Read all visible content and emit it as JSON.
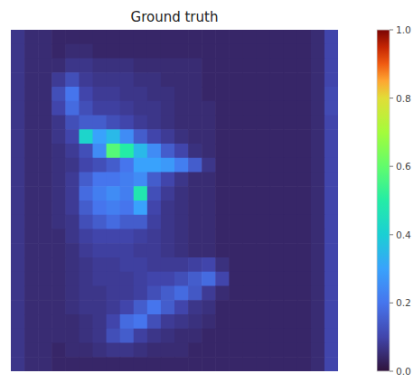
{
  "chart_data": {
    "type": "heatmap",
    "title": "Ground truth",
    "tick_labels": false,
    "zlim": [
      0,
      1
    ],
    "zticks": [
      {
        "value": 0,
        "label": "0.0"
      },
      {
        "value": 0.2,
        "label": "0.2"
      },
      {
        "value": 0.4,
        "label": "0.4"
      },
      {
        "value": 0.6,
        "label": "0.6"
      },
      {
        "value": 0.8,
        "label": "0.8"
      },
      {
        "value": 1,
        "label": "1.0"
      }
    ],
    "values": [
      [
        0.07,
        0.05,
        0.05,
        0.04,
        0.04,
        0.04,
        0.04,
        0.04,
        0.04,
        0.04,
        0.04,
        0.04,
        0.04,
        0.04,
        0.04,
        0.04,
        0.04,
        0.04,
        0.04,
        0.04,
        0.04,
        0.04,
        0.05,
        0.1
      ],
      [
        0.07,
        0.05,
        0.05,
        0.04,
        0.05,
        0.05,
        0.04,
        0.04,
        0.04,
        0.04,
        0.04,
        0.04,
        0.04,
        0.04,
        0.04,
        0.04,
        0.04,
        0.04,
        0.04,
        0.04,
        0.04,
        0.04,
        0.05,
        0.1
      ],
      [
        0.07,
        0.05,
        0.05,
        0.05,
        0.07,
        0.07,
        0.06,
        0.06,
        0.06,
        0.05,
        0.05,
        0.05,
        0.05,
        0.05,
        0.04,
        0.04,
        0.04,
        0.04,
        0.04,
        0.04,
        0.04,
        0.04,
        0.05,
        0.1
      ],
      [
        0.07,
        0.05,
        0.05,
        0.08,
        0.12,
        0.08,
        0.07,
        0.07,
        0.07,
        0.06,
        0.06,
        0.05,
        0.05,
        0.05,
        0.04,
        0.04,
        0.04,
        0.04,
        0.04,
        0.04,
        0.04,
        0.04,
        0.05,
        0.1
      ],
      [
        0.07,
        0.05,
        0.05,
        0.12,
        0.2,
        0.1,
        0.08,
        0.08,
        0.07,
        0.07,
        0.06,
        0.06,
        0.05,
        0.05,
        0.04,
        0.04,
        0.04,
        0.04,
        0.04,
        0.04,
        0.04,
        0.04,
        0.05,
        0.11
      ],
      [
        0.07,
        0.05,
        0.05,
        0.1,
        0.18,
        0.12,
        0.09,
        0.09,
        0.08,
        0.07,
        0.07,
        0.06,
        0.05,
        0.05,
        0.05,
        0.04,
        0.04,
        0.04,
        0.04,
        0.04,
        0.04,
        0.04,
        0.05,
        0.11
      ],
      [
        0.07,
        0.05,
        0.05,
        0.07,
        0.12,
        0.15,
        0.15,
        0.12,
        0.1,
        0.08,
        0.07,
        0.06,
        0.05,
        0.05,
        0.05,
        0.04,
        0.04,
        0.04,
        0.04,
        0.04,
        0.04,
        0.04,
        0.05,
        0.1
      ],
      [
        0.07,
        0.05,
        0.05,
        0.07,
        0.1,
        0.42,
        0.3,
        0.35,
        0.25,
        0.15,
        0.1,
        0.08,
        0.06,
        0.05,
        0.05,
        0.04,
        0.04,
        0.04,
        0.04,
        0.04,
        0.04,
        0.04,
        0.05,
        0.1
      ],
      [
        0.07,
        0.05,
        0.05,
        0.06,
        0.08,
        0.12,
        0.25,
        0.58,
        0.5,
        0.35,
        0.25,
        0.15,
        0.1,
        0.06,
        0.05,
        0.04,
        0.04,
        0.04,
        0.04,
        0.04,
        0.04,
        0.04,
        0.05,
        0.1
      ],
      [
        0.07,
        0.05,
        0.05,
        0.06,
        0.07,
        0.1,
        0.12,
        0.15,
        0.2,
        0.3,
        0.3,
        0.28,
        0.22,
        0.15,
        0.07,
        0.04,
        0.04,
        0.04,
        0.04,
        0.04,
        0.04,
        0.04,
        0.05,
        0.1
      ],
      [
        0.07,
        0.05,
        0.05,
        0.06,
        0.08,
        0.15,
        0.2,
        0.2,
        0.22,
        0.25,
        0.15,
        0.1,
        0.07,
        0.05,
        0.05,
        0.04,
        0.04,
        0.04,
        0.04,
        0.04,
        0.04,
        0.04,
        0.05,
        0.1
      ],
      [
        0.07,
        0.05,
        0.05,
        0.06,
        0.08,
        0.18,
        0.22,
        0.25,
        0.22,
        0.48,
        0.12,
        0.08,
        0.06,
        0.05,
        0.05,
        0.04,
        0.04,
        0.04,
        0.04,
        0.04,
        0.04,
        0.04,
        0.05,
        0.1
      ],
      [
        0.07,
        0.05,
        0.05,
        0.06,
        0.08,
        0.15,
        0.2,
        0.22,
        0.2,
        0.3,
        0.1,
        0.07,
        0.06,
        0.05,
        0.05,
        0.04,
        0.04,
        0.04,
        0.04,
        0.04,
        0.04,
        0.04,
        0.05,
        0.1
      ],
      [
        0.07,
        0.05,
        0.05,
        0.06,
        0.07,
        0.12,
        0.15,
        0.18,
        0.15,
        0.15,
        0.09,
        0.07,
        0.06,
        0.05,
        0.05,
        0.04,
        0.04,
        0.04,
        0.04,
        0.04,
        0.04,
        0.04,
        0.05,
        0.1
      ],
      [
        0.07,
        0.05,
        0.05,
        0.05,
        0.07,
        0.09,
        0.1,
        0.1,
        0.1,
        0.09,
        0.08,
        0.07,
        0.06,
        0.05,
        0.05,
        0.04,
        0.04,
        0.04,
        0.04,
        0.04,
        0.04,
        0.04,
        0.05,
        0.1
      ],
      [
        0.07,
        0.05,
        0.05,
        0.05,
        0.06,
        0.08,
        0.09,
        0.09,
        0.09,
        0.08,
        0.08,
        0.07,
        0.06,
        0.05,
        0.05,
        0.04,
        0.04,
        0.04,
        0.04,
        0.04,
        0.04,
        0.04,
        0.05,
        0.1
      ],
      [
        0.07,
        0.05,
        0.05,
        0.05,
        0.06,
        0.07,
        0.08,
        0.08,
        0.09,
        0.09,
        0.08,
        0.08,
        0.08,
        0.09,
        0.1,
        0.06,
        0.04,
        0.04,
        0.04,
        0.04,
        0.04,
        0.04,
        0.05,
        0.1
      ],
      [
        0.07,
        0.05,
        0.05,
        0.05,
        0.06,
        0.07,
        0.08,
        0.08,
        0.08,
        0.09,
        0.1,
        0.1,
        0.12,
        0.15,
        0.18,
        0.1,
        0.04,
        0.04,
        0.04,
        0.04,
        0.04,
        0.04,
        0.05,
        0.1
      ],
      [
        0.07,
        0.05,
        0.05,
        0.05,
        0.06,
        0.07,
        0.07,
        0.08,
        0.08,
        0.09,
        0.12,
        0.15,
        0.18,
        0.14,
        0.08,
        0.05,
        0.04,
        0.04,
        0.04,
        0.04,
        0.04,
        0.04,
        0.05,
        0.1
      ],
      [
        0.07,
        0.05,
        0.05,
        0.05,
        0.06,
        0.07,
        0.07,
        0.08,
        0.1,
        0.15,
        0.2,
        0.15,
        0.1,
        0.07,
        0.06,
        0.04,
        0.04,
        0.04,
        0.04,
        0.04,
        0.04,
        0.04,
        0.05,
        0.1
      ],
      [
        0.07,
        0.05,
        0.05,
        0.05,
        0.05,
        0.06,
        0.07,
        0.1,
        0.18,
        0.2,
        0.12,
        0.08,
        0.07,
        0.06,
        0.05,
        0.04,
        0.04,
        0.04,
        0.04,
        0.04,
        0.04,
        0.04,
        0.05,
        0.1
      ],
      [
        0.07,
        0.05,
        0.05,
        0.05,
        0.05,
        0.06,
        0.07,
        0.12,
        0.15,
        0.09,
        0.07,
        0.06,
        0.05,
        0.05,
        0.04,
        0.04,
        0.04,
        0.04,
        0.04,
        0.04,
        0.04,
        0.04,
        0.05,
        0.1
      ],
      [
        0.07,
        0.05,
        0.05,
        0.04,
        0.05,
        0.05,
        0.06,
        0.07,
        0.07,
        0.06,
        0.05,
        0.05,
        0.05,
        0.04,
        0.04,
        0.04,
        0.04,
        0.04,
        0.04,
        0.04,
        0.04,
        0.04,
        0.05,
        0.1
      ],
      [
        0.07,
        0.05,
        0.05,
        0.04,
        0.04,
        0.04,
        0.04,
        0.04,
        0.04,
        0.04,
        0.04,
        0.04,
        0.04,
        0.04,
        0.04,
        0.04,
        0.04,
        0.04,
        0.04,
        0.04,
        0.04,
        0.04,
        0.05,
        0.1
      ]
    ]
  }
}
